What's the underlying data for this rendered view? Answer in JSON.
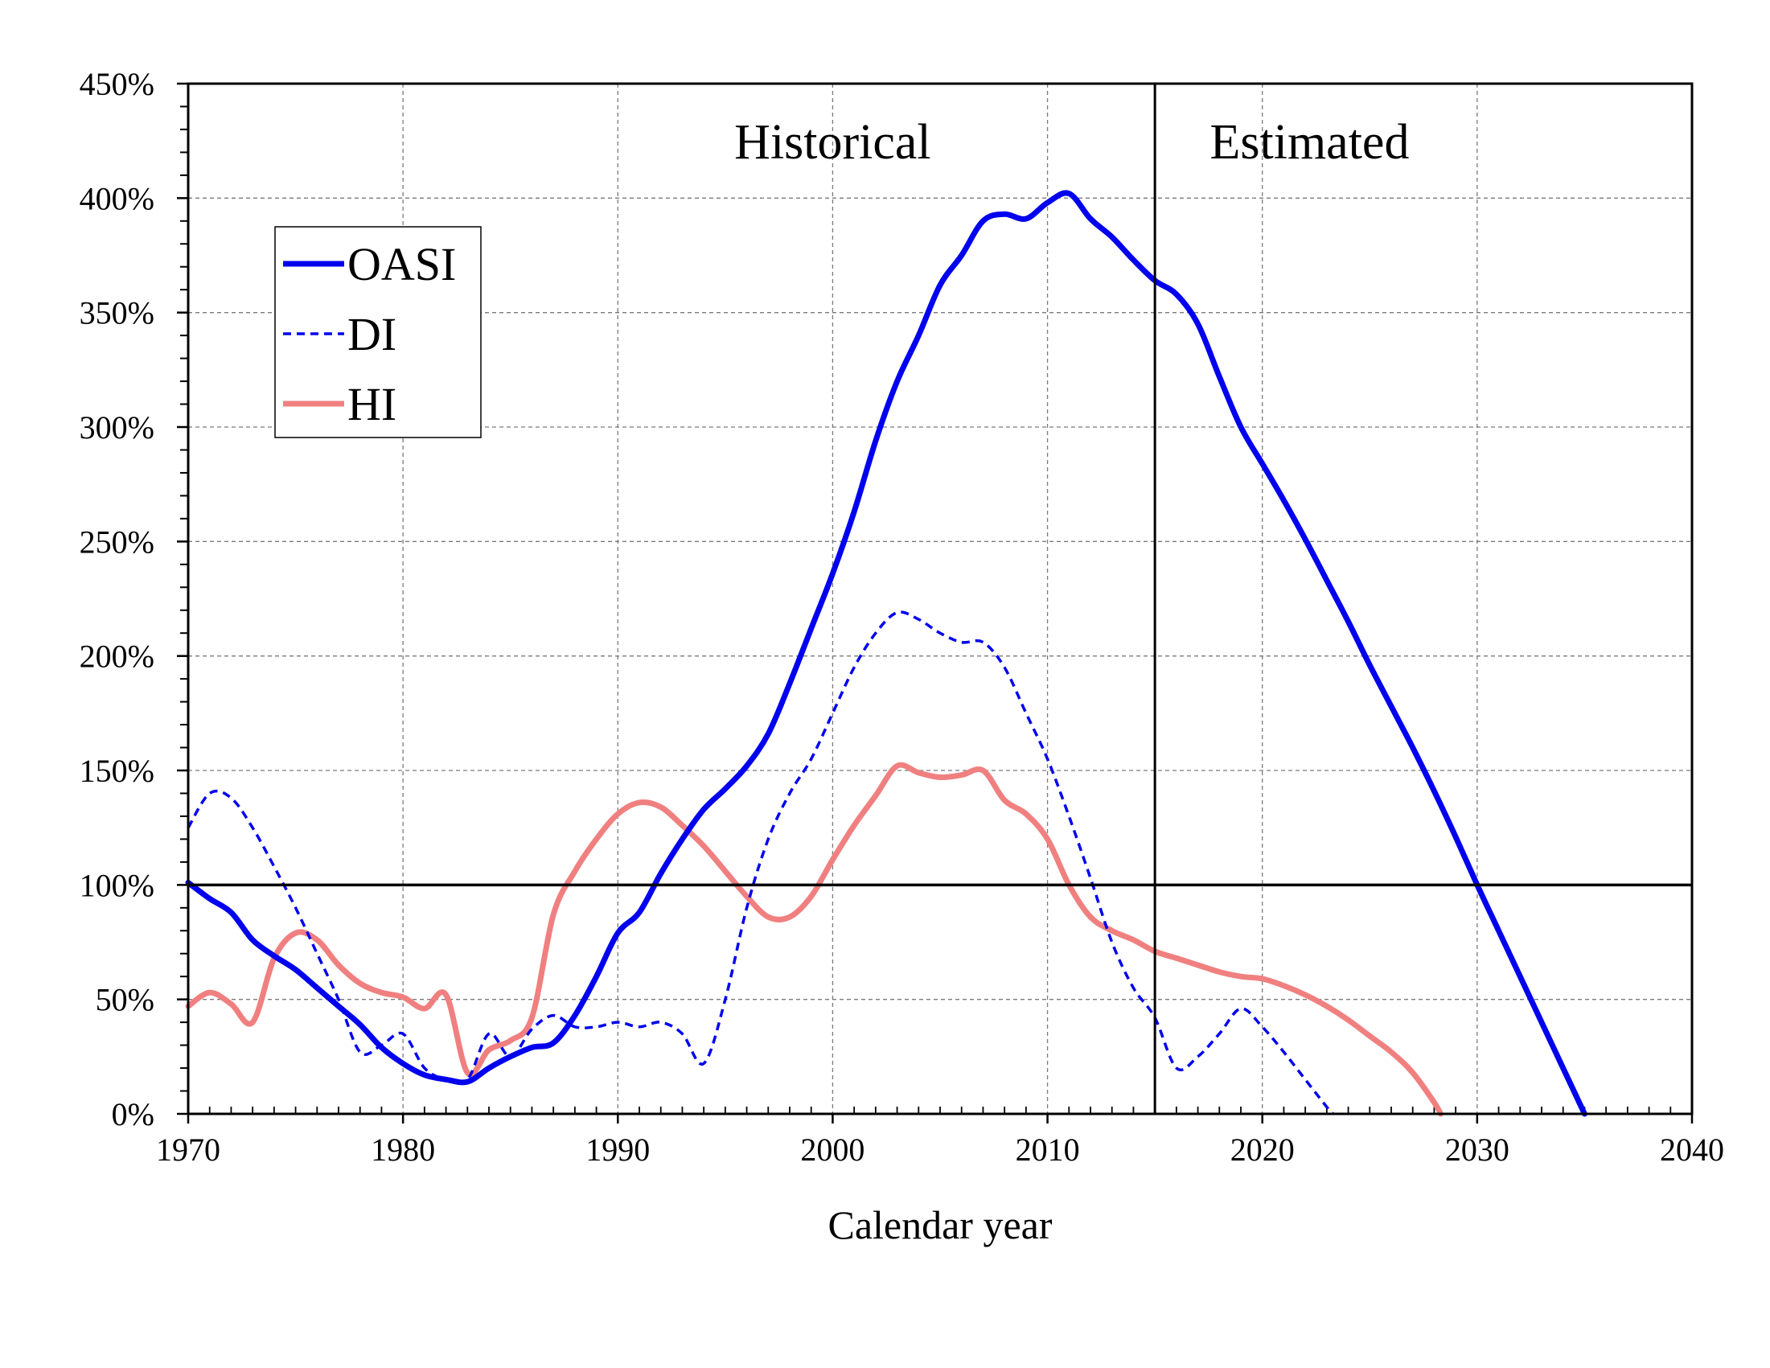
{
  "chart_data": {
    "type": "line",
    "title": "",
    "xlabel": "Calendar year",
    "ylabel": "",
    "xlim": [
      1970,
      2040
    ],
    "ylim": [
      0,
      450
    ],
    "x_ticks": [
      1970,
      1980,
      1990,
      2000,
      2010,
      2020,
      2030,
      2040
    ],
    "x_tick_labels": [
      "1970",
      "1980",
      "1990",
      "2000",
      "2010",
      "2020",
      "2030",
      "2040"
    ],
    "y_ticks": [
      0,
      50,
      100,
      150,
      200,
      250,
      300,
      350,
      400,
      450
    ],
    "y_tick_labels": [
      "0%",
      "50%",
      "100%",
      "150%",
      "200%",
      "250%",
      "300%",
      "350%",
      "400%",
      "450%"
    ],
    "grid": true,
    "reference_line_y": 100,
    "divider_x": 2015,
    "region_labels": [
      "Historical",
      "Estimated"
    ],
    "legend_position": "upper-left",
    "series": [
      {
        "name": "OASI",
        "color": "#0000ee",
        "style": "solid",
        "points": [
          [
            1970,
            101
          ],
          [
            1971,
            94
          ],
          [
            1972,
            88
          ],
          [
            1973,
            76
          ],
          [
            1974,
            69
          ],
          [
            1975,
            63
          ],
          [
            1976,
            55
          ],
          [
            1977,
            47
          ],
          [
            1978,
            39
          ],
          [
            1979,
            29
          ],
          [
            1980,
            22
          ],
          [
            1981,
            17
          ],
          [
            1982,
            15
          ],
          [
            1983,
            14
          ],
          [
            1984,
            20
          ],
          [
            1985,
            25
          ],
          [
            1986,
            29
          ],
          [
            1987,
            31
          ],
          [
            1988,
            43
          ],
          [
            1989,
            60
          ],
          [
            1990,
            79
          ],
          [
            1991,
            88
          ],
          [
            1992,
            105
          ],
          [
            1993,
            120
          ],
          [
            1994,
            133
          ],
          [
            1995,
            142
          ],
          [
            1996,
            152
          ],
          [
            1997,
            166
          ],
          [
            1998,
            188
          ],
          [
            1999,
            212
          ],
          [
            2000,
            236
          ],
          [
            2001,
            263
          ],
          [
            2002,
            294
          ],
          [
            2003,
            320
          ],
          [
            2004,
            340
          ],
          [
            2005,
            362
          ],
          [
            2006,
            375
          ],
          [
            2007,
            390
          ],
          [
            2008,
            393
          ],
          [
            2009,
            391
          ],
          [
            2010,
            398
          ],
          [
            2011,
            402
          ],
          [
            2012,
            391
          ],
          [
            2013,
            383
          ],
          [
            2014,
            373
          ],
          [
            2015,
            364
          ],
          [
            2016,
            358
          ],
          [
            2017,
            345
          ],
          [
            2018,
            322
          ],
          [
            2019,
            300
          ],
          [
            2020,
            284
          ],
          [
            2021,
            268
          ],
          [
            2022,
            251
          ],
          [
            2023,
            233
          ],
          [
            2024,
            215
          ],
          [
            2025,
            196
          ],
          [
            2026,
            178
          ],
          [
            2027,
            160
          ],
          [
            2028,
            141
          ],
          [
            2029,
            121
          ],
          [
            2030,
            100
          ],
          [
            2031,
            80
          ],
          [
            2032,
            60
          ],
          [
            2033,
            40
          ],
          [
            2034,
            20
          ],
          [
            2035,
            0
          ]
        ]
      },
      {
        "name": "DI",
        "color": "#0000ee",
        "style": "dashed",
        "points": [
          [
            1970,
            125
          ],
          [
            1971,
            140
          ],
          [
            1972,
            138
          ],
          [
            1973,
            125
          ],
          [
            1974,
            108
          ],
          [
            1975,
            90
          ],
          [
            1976,
            70
          ],
          [
            1977,
            50
          ],
          [
            1978,
            27
          ],
          [
            1979,
            30
          ],
          [
            1980,
            35
          ],
          [
            1981,
            20
          ],
          [
            1982,
            15
          ],
          [
            1983,
            15
          ],
          [
            1984,
            35
          ],
          [
            1985,
            25
          ],
          [
            1986,
            37
          ],
          [
            1987,
            43
          ],
          [
            1988,
            38
          ],
          [
            1989,
            38
          ],
          [
            1990,
            40
          ],
          [
            1991,
            38
          ],
          [
            1992,
            40
          ],
          [
            1993,
            35
          ],
          [
            1994,
            22
          ],
          [
            1995,
            50
          ],
          [
            1996,
            90
          ],
          [
            1997,
            120
          ],
          [
            1998,
            140
          ],
          [
            1999,
            155
          ],
          [
            2000,
            175
          ],
          [
            2001,
            195
          ],
          [
            2002,
            210
          ],
          [
            2003,
            219
          ],
          [
            2004,
            216
          ],
          [
            2005,
            210
          ],
          [
            2006,
            206
          ],
          [
            2007,
            206
          ],
          [
            2008,
            195
          ],
          [
            2009,
            175
          ],
          [
            2010,
            155
          ],
          [
            2011,
            130
          ],
          [
            2012,
            103
          ],
          [
            2013,
            75
          ],
          [
            2014,
            55
          ],
          [
            2015,
            42
          ],
          [
            2016,
            20
          ],
          [
            2017,
            25
          ],
          [
            2018,
            35
          ],
          [
            2019,
            46
          ],
          [
            2020,
            38
          ],
          [
            2021,
            27
          ],
          [
            2022,
            15
          ],
          [
            2023,
            3
          ],
          [
            2023.3,
            0
          ]
        ]
      },
      {
        "name": "HI",
        "color": "#f08080",
        "style": "solid",
        "points": [
          [
            1970,
            47
          ],
          [
            1971,
            53
          ],
          [
            1972,
            48
          ],
          [
            1973,
            40
          ],
          [
            1974,
            68
          ],
          [
            1975,
            79
          ],
          [
            1976,
            76
          ],
          [
            1977,
            65
          ],
          [
            1978,
            57
          ],
          [
            1979,
            53
          ],
          [
            1980,
            51
          ],
          [
            1981,
            46
          ],
          [
            1982,
            52
          ],
          [
            1983,
            18
          ],
          [
            1984,
            28
          ],
          [
            1985,
            32
          ],
          [
            1986,
            42
          ],
          [
            1987,
            87
          ],
          [
            1988,
            106
          ],
          [
            1989,
            120
          ],
          [
            1990,
            131
          ],
          [
            1991,
            136
          ],
          [
            1992,
            134
          ],
          [
            1993,
            126
          ],
          [
            1994,
            117
          ],
          [
            1995,
            106
          ],
          [
            1996,
            95
          ],
          [
            1997,
            86
          ],
          [
            1998,
            86
          ],
          [
            1999,
            95
          ],
          [
            2000,
            111
          ],
          [
            2001,
            126
          ],
          [
            2002,
            139
          ],
          [
            2003,
            152
          ],
          [
            2004,
            149
          ],
          [
            2005,
            147
          ],
          [
            2006,
            148
          ],
          [
            2007,
            150
          ],
          [
            2008,
            137
          ],
          [
            2009,
            131
          ],
          [
            2010,
            120
          ],
          [
            2011,
            100
          ],
          [
            2012,
            86
          ],
          [
            2013,
            80
          ],
          [
            2014,
            76
          ],
          [
            2015,
            71
          ],
          [
            2016,
            68
          ],
          [
            2017,
            65
          ],
          [
            2018,
            62
          ],
          [
            2019,
            60
          ],
          [
            2020,
            59
          ],
          [
            2021,
            56
          ],
          [
            2022,
            52
          ],
          [
            2023,
            47
          ],
          [
            2024,
            41
          ],
          [
            2025,
            34
          ],
          [
            2026,
            27
          ],
          [
            2027,
            18
          ],
          [
            2028,
            5
          ],
          [
            2028.3,
            0
          ]
        ]
      }
    ]
  }
}
